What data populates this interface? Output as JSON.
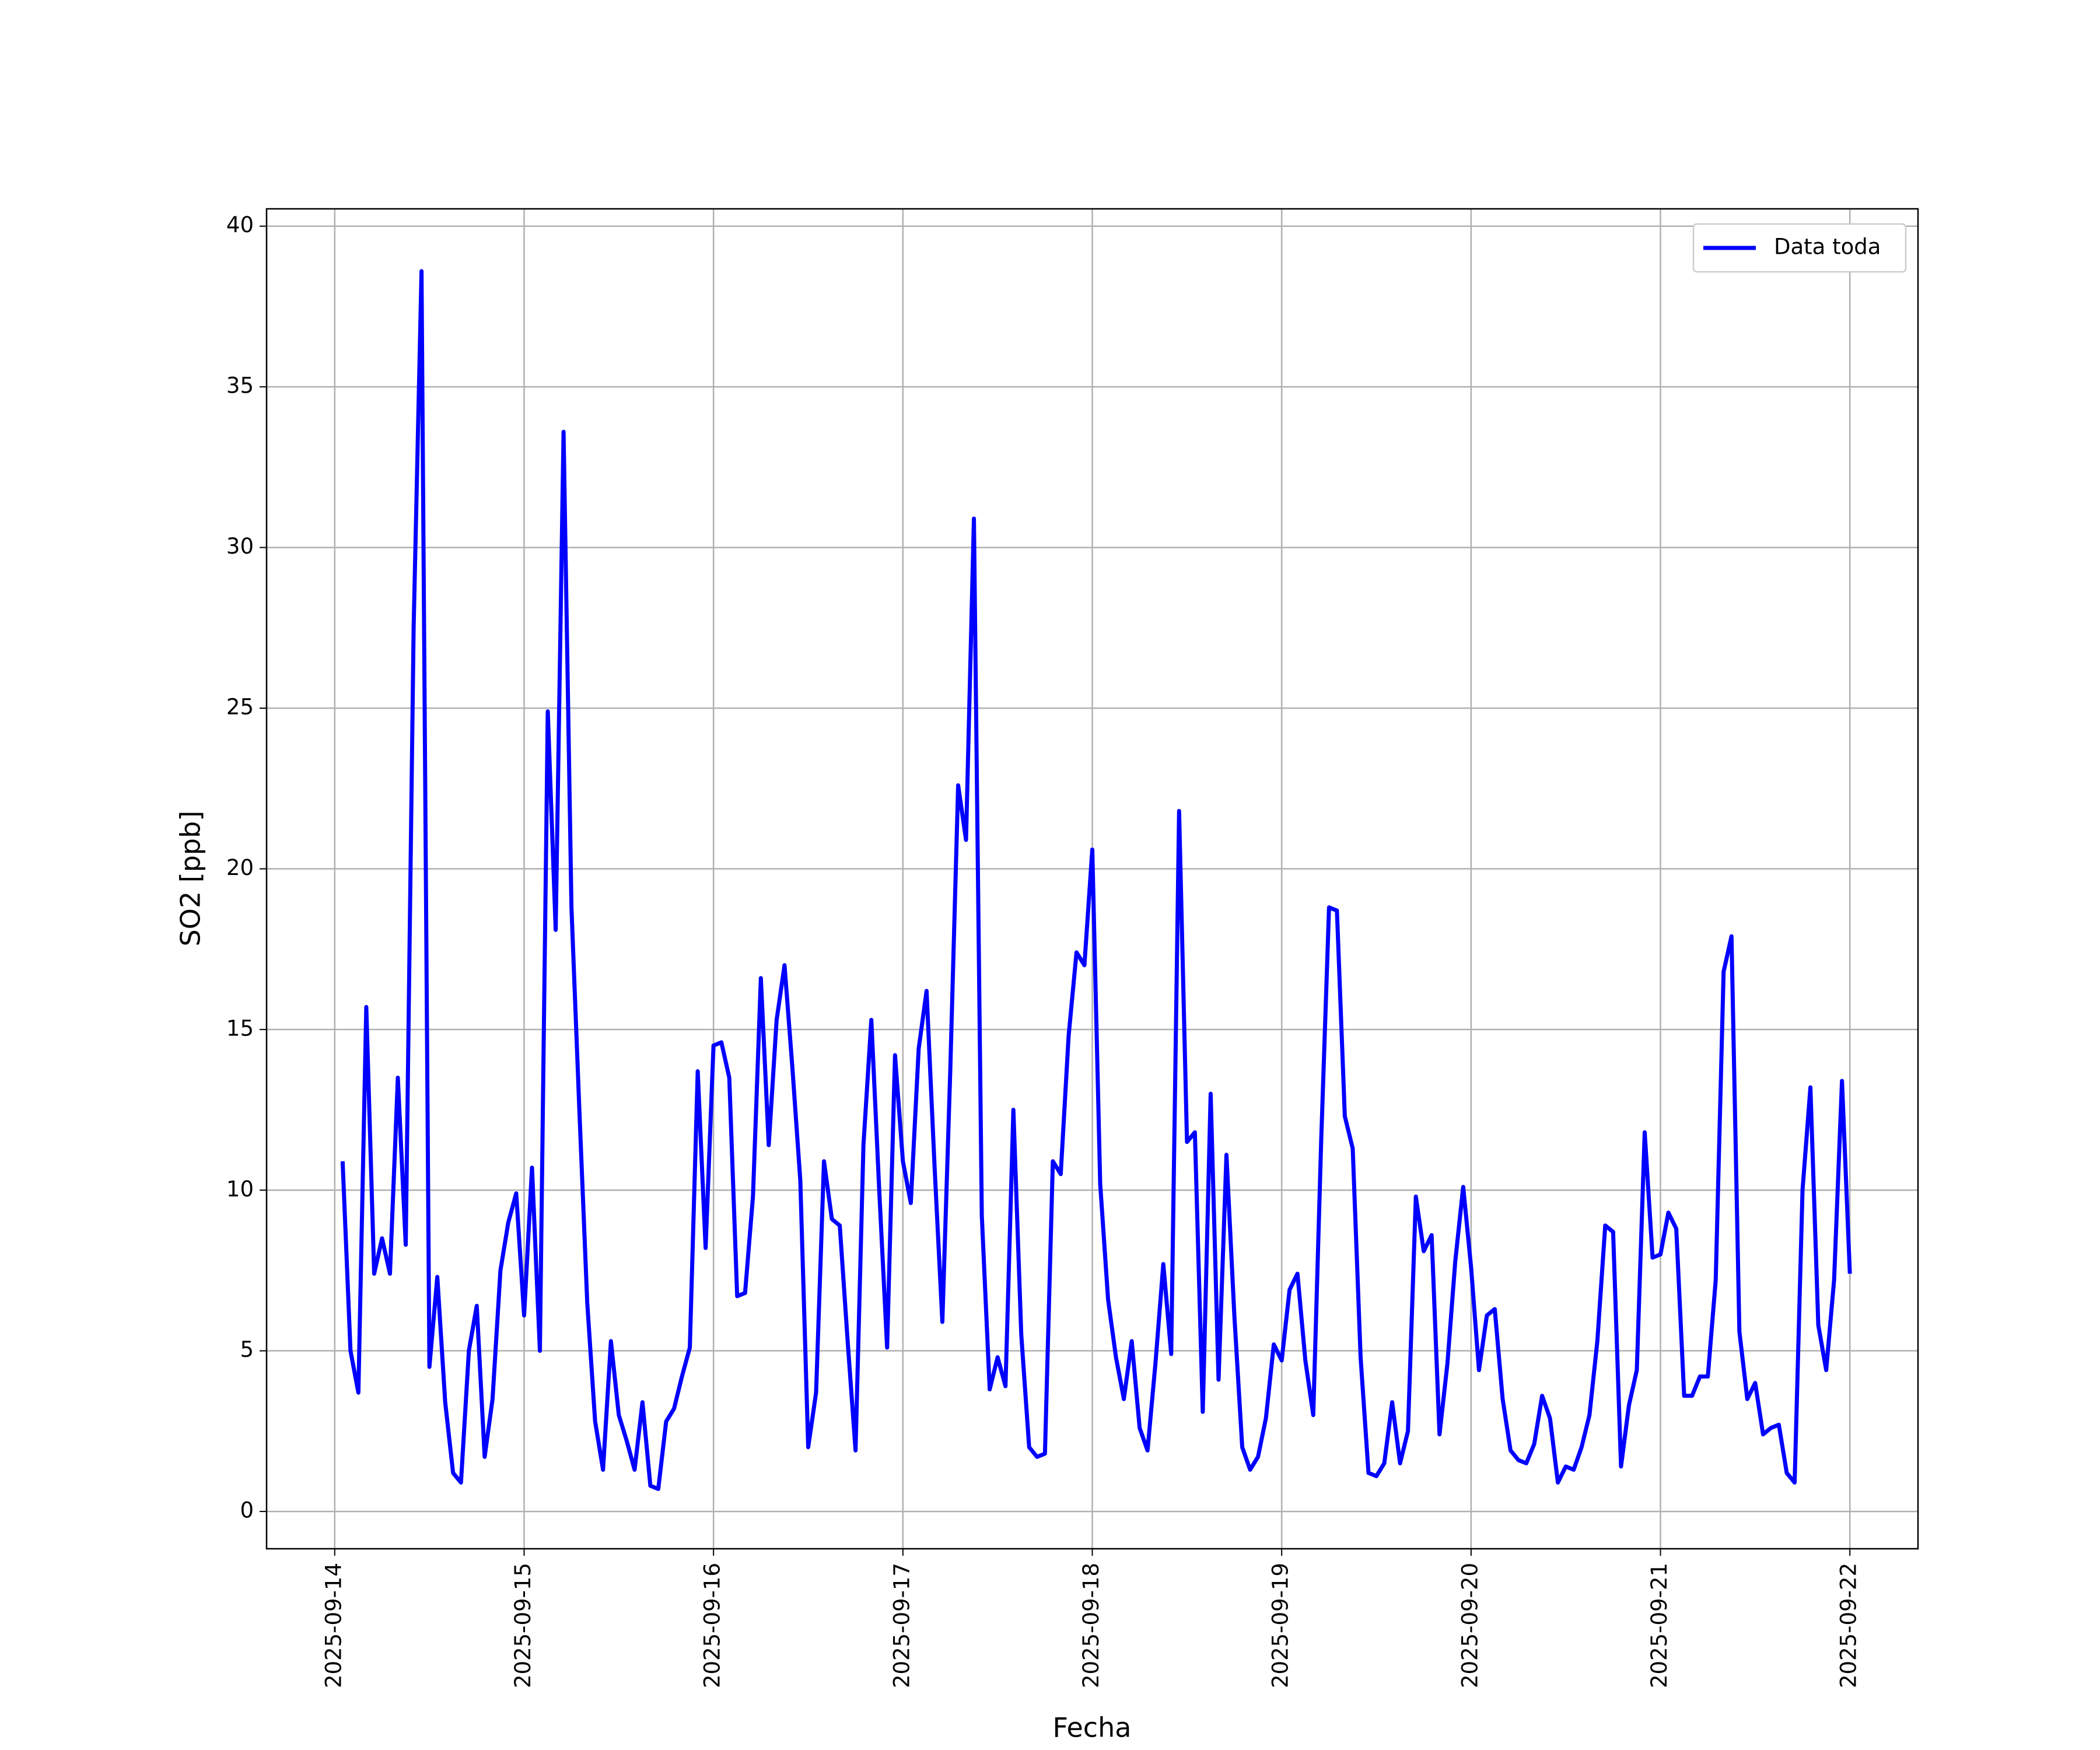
{
  "chart_data": {
    "type": "line",
    "xlabel": "Fecha",
    "ylabel": "SO2 [ppb]",
    "x": [
      "2025-09-14 01:00",
      "2025-09-14 02:00",
      "2025-09-14 03:00",
      "2025-09-14 04:00",
      "2025-09-14 05:00",
      "2025-09-14 06:00",
      "2025-09-14 07:00",
      "2025-09-14 08:00",
      "2025-09-14 09:00",
      "2025-09-14 10:00",
      "2025-09-14 11:00",
      "2025-09-14 12:00",
      "2025-09-14 13:00",
      "2025-09-14 14:00",
      "2025-09-14 15:00",
      "2025-09-14 16:00",
      "2025-09-14 17:00",
      "2025-09-14 18:00",
      "2025-09-14 19:00",
      "2025-09-14 20:00",
      "2025-09-14 21:00",
      "2025-09-14 22:00",
      "2025-09-14 23:00",
      "2025-09-15 00:00",
      "2025-09-15 01:00",
      "2025-09-15 02:00",
      "2025-09-15 03:00",
      "2025-09-15 04:00",
      "2025-09-15 05:00",
      "2025-09-15 06:00",
      "2025-09-15 07:00",
      "2025-09-15 08:00",
      "2025-09-15 09:00",
      "2025-09-15 10:00",
      "2025-09-15 11:00",
      "2025-09-15 12:00",
      "2025-09-15 13:00",
      "2025-09-15 14:00",
      "2025-09-15 15:00",
      "2025-09-15 16:00",
      "2025-09-15 17:00",
      "2025-09-15 18:00",
      "2025-09-15 19:00",
      "2025-09-15 20:00",
      "2025-09-15 21:00",
      "2025-09-15 22:00",
      "2025-09-15 23:00",
      "2025-09-16 00:00",
      "2025-09-16 01:00",
      "2025-09-16 02:00",
      "2025-09-16 03:00",
      "2025-09-16 04:00",
      "2025-09-16 05:00",
      "2025-09-16 06:00",
      "2025-09-16 07:00",
      "2025-09-16 08:00",
      "2025-09-16 09:00",
      "2025-09-16 10:00",
      "2025-09-16 11:00",
      "2025-09-16 12:00",
      "2025-09-16 13:00",
      "2025-09-16 14:00",
      "2025-09-16 15:00",
      "2025-09-16 16:00",
      "2025-09-16 17:00",
      "2025-09-16 18:00",
      "2025-09-16 19:00",
      "2025-09-16 20:00",
      "2025-09-16 21:00",
      "2025-09-16 22:00",
      "2025-09-16 23:00",
      "2025-09-17 00:00",
      "2025-09-17 01:00",
      "2025-09-17 02:00",
      "2025-09-17 03:00",
      "2025-09-17 04:00",
      "2025-09-17 05:00",
      "2025-09-17 06:00",
      "2025-09-17 07:00",
      "2025-09-17 08:00",
      "2025-09-17 09:00",
      "2025-09-17 10:00",
      "2025-09-17 11:00",
      "2025-09-17 12:00",
      "2025-09-17 13:00",
      "2025-09-17 14:00",
      "2025-09-17 15:00",
      "2025-09-17 16:00",
      "2025-09-17 17:00",
      "2025-09-17 18:00",
      "2025-09-17 19:00",
      "2025-09-17 20:00",
      "2025-09-17 21:00",
      "2025-09-17 22:00",
      "2025-09-17 23:00",
      "2025-09-18 00:00",
      "2025-09-18 01:00",
      "2025-09-18 02:00",
      "2025-09-18 03:00",
      "2025-09-18 04:00",
      "2025-09-18 05:00",
      "2025-09-18 06:00",
      "2025-09-18 07:00",
      "2025-09-18 08:00",
      "2025-09-18 09:00",
      "2025-09-18 10:00",
      "2025-09-18 11:00",
      "2025-09-18 12:00",
      "2025-09-18 13:00",
      "2025-09-18 14:00",
      "2025-09-18 15:00",
      "2025-09-18 16:00",
      "2025-09-18 17:00",
      "2025-09-18 18:00",
      "2025-09-18 19:00",
      "2025-09-18 20:00",
      "2025-09-18 21:00",
      "2025-09-18 22:00",
      "2025-09-18 23:00",
      "2025-09-19 00:00",
      "2025-09-19 01:00",
      "2025-09-19 02:00",
      "2025-09-19 03:00",
      "2025-09-19 04:00",
      "2025-09-19 05:00",
      "2025-09-19 06:00",
      "2025-09-19 07:00",
      "2025-09-19 08:00",
      "2025-09-19 09:00",
      "2025-09-19 10:00",
      "2025-09-19 11:00",
      "2025-09-19 12:00",
      "2025-09-19 13:00",
      "2025-09-19 14:00",
      "2025-09-19 15:00",
      "2025-09-19 16:00",
      "2025-09-19 17:00",
      "2025-09-19 18:00",
      "2025-09-19 19:00",
      "2025-09-19 20:00",
      "2025-09-19 21:00",
      "2025-09-19 22:00",
      "2025-09-19 23:00",
      "2025-09-20 00:00",
      "2025-09-20 01:00",
      "2025-09-20 02:00",
      "2025-09-20 03:00",
      "2025-09-20 04:00",
      "2025-09-20 05:00",
      "2025-09-20 06:00",
      "2025-09-20 07:00",
      "2025-09-20 08:00",
      "2025-09-20 09:00",
      "2025-09-20 10:00",
      "2025-09-20 11:00",
      "2025-09-20 12:00",
      "2025-09-20 13:00",
      "2025-09-20 14:00",
      "2025-09-20 15:00",
      "2025-09-20 16:00",
      "2025-09-20 17:00",
      "2025-09-20 18:00",
      "2025-09-20 19:00",
      "2025-09-20 20:00",
      "2025-09-20 21:00",
      "2025-09-20 22:00",
      "2025-09-20 23:00",
      "2025-09-21 00:00",
      "2025-09-21 01:00",
      "2025-09-21 02:00",
      "2025-09-21 03:00",
      "2025-09-21 04:00",
      "2025-09-21 05:00",
      "2025-09-21 06:00",
      "2025-09-21 07:00",
      "2025-09-21 08:00",
      "2025-09-21 09:00",
      "2025-09-21 10:00",
      "2025-09-21 11:00",
      "2025-09-21 12:00",
      "2025-09-21 13:00",
      "2025-09-21 14:00",
      "2025-09-21 15:00",
      "2025-09-21 16:00",
      "2025-09-21 17:00",
      "2025-09-21 18:00",
      "2025-09-21 19:00",
      "2025-09-21 20:00",
      "2025-09-21 21:00",
      "2025-09-21 22:00",
      "2025-09-21 23:00",
      "2025-09-22 00:00"
    ],
    "series": [
      {
        "name": "Data toda",
        "color": "#0000ff",
        "values": [
          10.9,
          5.0,
          3.7,
          15.7,
          7.4,
          8.5,
          7.4,
          13.5,
          8.3,
          27.5,
          38.6,
          4.5,
          7.3,
          3.4,
          1.2,
          0.9,
          5.0,
          6.4,
          1.7,
          3.5,
          7.5,
          9.0,
          9.9,
          6.1,
          10.7,
          5.0,
          24.9,
          18.1,
          33.6,
          18.8,
          12.5,
          6.5,
          2.8,
          1.3,
          5.3,
          3.0,
          2.2,
          1.3,
          3.4,
          0.8,
          0.7,
          2.8,
          3.2,
          4.2,
          5.1,
          13.7,
          8.2,
          14.5,
          14.6,
          13.5,
          6.7,
          6.8,
          9.8,
          16.6,
          11.4,
          15.3,
          17.0,
          13.8,
          10.3,
          2.0,
          3.7,
          10.9,
          9.1,
          8.9,
          5.3,
          1.9,
          11.4,
          15.3,
          10.0,
          5.1,
          14.2,
          10.9,
          9.6,
          14.4,
          16.2,
          10.8,
          5.9,
          13.7,
          22.6,
          20.9,
          30.9,
          9.2,
          3.8,
          4.8,
          3.9,
          12.5,
          5.5,
          2.0,
          1.7,
          1.8,
          10.9,
          10.5,
          14.8,
          17.4,
          17.0,
          20.6,
          10.2,
          6.6,
          4.8,
          3.5,
          5.3,
          2.6,
          1.9,
          4.6,
          7.7,
          4.9,
          21.8,
          11.5,
          11.8,
          3.1,
          13.0,
          4.1,
          11.1,
          6.1,
          2.0,
          1.3,
          1.7,
          2.9,
          5.2,
          4.7,
          6.9,
          7.4,
          4.7,
          3.0,
          11.5,
          18.8,
          18.7,
          12.3,
          11.3,
          4.8,
          1.2,
          1.1,
          1.5,
          3.4,
          1.5,
          2.5,
          9.8,
          8.1,
          8.6,
          2.4,
          4.6,
          7.8,
          10.1,
          7.6,
          4.4,
          6.1,
          6.3,
          3.5,
          1.9,
          1.6,
          1.5,
          2.1,
          3.6,
          2.9,
          0.9,
          1.4,
          1.3,
          2.0,
          3.0,
          5.3,
          8.9,
          8.7,
          1.4,
          3.3,
          4.4,
          11.8,
          7.9,
          8.0,
          9.3,
          8.8,
          3.6,
          3.6,
          4.2,
          4.2,
          7.2,
          16.8,
          17.9,
          5.6,
          3.5,
          4.0,
          2.4,
          2.6,
          2.7,
          1.2,
          0.9,
          10.0,
          13.2,
          5.8,
          4.4,
          7.2,
          13.4,
          7.4
        ]
      }
    ],
    "xlim": [
      "2025-09-13 15:22",
      "2025-09-22 08:38"
    ],
    "xticks": [
      "2025-09-14",
      "2025-09-15",
      "2025-09-16",
      "2025-09-17",
      "2025-09-18",
      "2025-09-19",
      "2025-09-20",
      "2025-09-21",
      "2025-09-22"
    ],
    "ylim": [
      -1.16,
      40.54
    ],
    "yticks": [
      0,
      5,
      10,
      15,
      20,
      25,
      30,
      35,
      40
    ],
    "grid": true,
    "legend": "upper right"
  }
}
